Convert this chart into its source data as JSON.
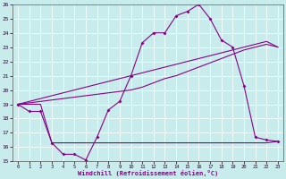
{
  "title": "",
  "xlabel": "Windchill (Refroidissement éolien,°C)",
  "xlim": [
    -0.5,
    23.5
  ],
  "ylim": [
    15,
    26
  ],
  "xticks": [
    0,
    1,
    2,
    3,
    4,
    5,
    6,
    7,
    8,
    9,
    10,
    11,
    12,
    13,
    14,
    15,
    16,
    17,
    18,
    19,
    20,
    21,
    22,
    23
  ],
  "yticks": [
    15,
    16,
    17,
    18,
    19,
    20,
    21,
    22,
    23,
    24,
    25,
    26
  ],
  "bg_color": "#c8ecec",
  "line_color": "#880088",
  "grid_color": "#ffffff",
  "hours": [
    0,
    1,
    2,
    3,
    4,
    5,
    6,
    7,
    8,
    9,
    10,
    11,
    12,
    13,
    14,
    15,
    16,
    17,
    18,
    19,
    20,
    21,
    22,
    23
  ],
  "windchill": [
    19.0,
    18.5,
    18.5,
    16.3,
    15.5,
    15.5,
    15.1,
    16.7,
    18.6,
    19.2,
    21.0,
    23.3,
    24.0,
    24.0,
    25.2,
    25.5,
    26.0,
    25.0,
    23.5,
    23.0,
    20.3,
    16.7,
    16.5,
    16.4
  ],
  "line_diag": [
    19.0,
    19.2,
    19.4,
    19.6,
    19.8,
    20.0,
    20.2,
    20.4,
    20.6,
    20.8,
    21.0,
    21.2,
    21.4,
    21.6,
    21.8,
    22.0,
    22.2,
    22.4,
    22.6,
    22.8,
    23.0,
    23.2,
    23.4,
    23.0
  ],
  "line_diag2": [
    19.0,
    19.1,
    19.2,
    19.3,
    19.4,
    19.5,
    19.6,
    19.7,
    19.8,
    19.9,
    20.0,
    20.2,
    20.5,
    20.8,
    21.0,
    21.3,
    21.6,
    21.9,
    22.2,
    22.5,
    22.8,
    23.0,
    23.2,
    23.0
  ],
  "line_flat": [
    19.0,
    19.0,
    19.0,
    16.3,
    16.3,
    16.3,
    16.3,
    16.3,
    16.3,
    16.3,
    16.3,
    16.3,
    16.3,
    16.3,
    16.3,
    16.3,
    16.3,
    16.3,
    16.3,
    16.3,
    16.3,
    16.3,
    16.3,
    16.4
  ]
}
